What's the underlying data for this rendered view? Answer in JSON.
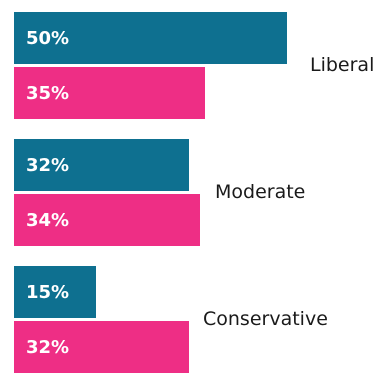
{
  "chart_data": {
    "type": "bar",
    "orientation": "horizontal",
    "categories": [
      "Liberal",
      "Moderate",
      "Conservative"
    ],
    "series": [
      {
        "color": "#0e7090",
        "values": [
          50,
          32,
          15
        ],
        "labels": [
          "50%",
          "32%",
          "15%"
        ]
      },
      {
        "color": "#ee2e85",
        "values": [
          35,
          34,
          32
        ],
        "labels": [
          "35%",
          "34%",
          "32%"
        ]
      }
    ],
    "xlim": [
      0,
      56
    ],
    "grid": false,
    "legend": "none"
  }
}
